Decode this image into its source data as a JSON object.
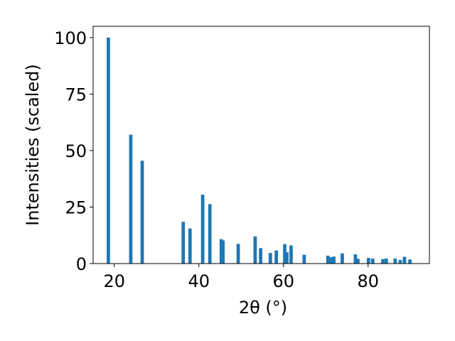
{
  "chart_data": {
    "type": "bar",
    "xlabel": "2θ (°)",
    "ylabel": "Intensities (scaled)",
    "xlim": [
      15,
      94.5
    ],
    "ylim": [
      0,
      105
    ],
    "xticks": [
      20,
      40,
      60,
      80
    ],
    "yticks": [
      0,
      25,
      50,
      75,
      100
    ],
    "bar_color": "#1f77b4",
    "bar_width": 0.8,
    "points": [
      {
        "x": 18.6,
        "y": 100
      },
      {
        "x": 23.9,
        "y": 57
      },
      {
        "x": 26.6,
        "y": 45.5
      },
      {
        "x": 36.3,
        "y": 18.5
      },
      {
        "x": 37.9,
        "y": 15.5
      },
      {
        "x": 40.9,
        "y": 30.5
      },
      {
        "x": 42.6,
        "y": 26.3
      },
      {
        "x": 45.3,
        "y": 10.8
      },
      {
        "x": 45.7,
        "y": 10.2
      },
      {
        "x": 49.3,
        "y": 8.7
      },
      {
        "x": 53.3,
        "y": 12
      },
      {
        "x": 54.6,
        "y": 6.8
      },
      {
        "x": 56.9,
        "y": 4.7
      },
      {
        "x": 58.3,
        "y": 5.8
      },
      {
        "x": 60.3,
        "y": 8.6
      },
      {
        "x": 60.8,
        "y": 5
      },
      {
        "x": 61.8,
        "y": 8
      },
      {
        "x": 64.9,
        "y": 3.9
      },
      {
        "x": 70.5,
        "y": 3.5
      },
      {
        "x": 71.3,
        "y": 2.8
      },
      {
        "x": 71.9,
        "y": 3.1
      },
      {
        "x": 73.9,
        "y": 4.5
      },
      {
        "x": 77,
        "y": 4.1
      },
      {
        "x": 77.6,
        "y": 2.1
      },
      {
        "x": 80.1,
        "y": 2.5
      },
      {
        "x": 81.1,
        "y": 2.2
      },
      {
        "x": 83.5,
        "y": 2
      },
      {
        "x": 84.3,
        "y": 2.2
      },
      {
        "x": 86.4,
        "y": 2.2
      },
      {
        "x": 87.6,
        "y": 1.6
      },
      {
        "x": 88.6,
        "y": 3
      },
      {
        "x": 89.9,
        "y": 1.8
      }
    ]
  }
}
